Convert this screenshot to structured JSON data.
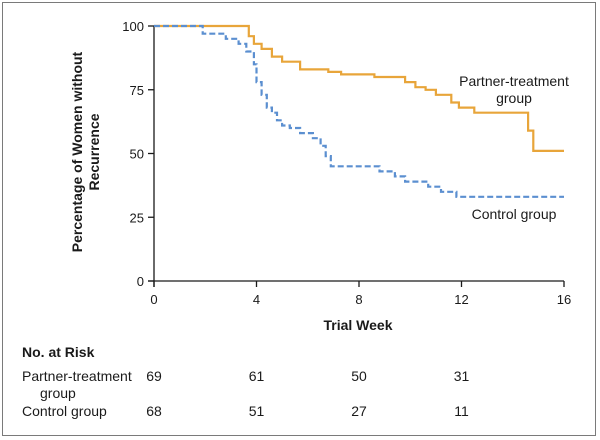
{
  "chart_data": {
    "type": "line",
    "step": true,
    "xlabel": "Trial Week",
    "ylabel": "Percentage of Women without Recurrence",
    "xlim": [
      0,
      16
    ],
    "ylim": [
      0,
      100
    ],
    "x_ticks": [
      0,
      4,
      8,
      12,
      16
    ],
    "y_ticks": [
      0,
      25,
      50,
      75,
      100
    ],
    "grid": false,
    "series": [
      {
        "name": "Partner-treatment group",
        "color": "#e8a53a",
        "line_style": "solid",
        "points": [
          [
            0,
            100
          ],
          [
            3.7,
            100
          ],
          [
            3.7,
            96
          ],
          [
            3.9,
            96
          ],
          [
            3.9,
            93
          ],
          [
            4.2,
            93
          ],
          [
            4.2,
            91
          ],
          [
            4.6,
            91
          ],
          [
            4.6,
            88
          ],
          [
            5.0,
            88
          ],
          [
            5.0,
            86
          ],
          [
            5.7,
            86
          ],
          [
            5.7,
            83
          ],
          [
            6.8,
            83
          ],
          [
            6.8,
            82
          ],
          [
            7.3,
            82
          ],
          [
            7.3,
            81
          ],
          [
            8.6,
            81
          ],
          [
            8.6,
            80
          ],
          [
            9.8,
            80
          ],
          [
            9.8,
            78
          ],
          [
            10.2,
            78
          ],
          [
            10.2,
            76
          ],
          [
            10.6,
            76
          ],
          [
            10.6,
            75
          ],
          [
            11.0,
            75
          ],
          [
            11.0,
            73
          ],
          [
            11.6,
            73
          ],
          [
            11.6,
            70
          ],
          [
            11.9,
            70
          ],
          [
            11.9,
            68
          ],
          [
            12.5,
            68
          ],
          [
            12.5,
            66
          ],
          [
            14.6,
            66
          ],
          [
            14.6,
            59
          ],
          [
            14.8,
            59
          ],
          [
            14.8,
            51
          ],
          [
            16,
            51
          ]
        ]
      },
      {
        "name": "Control group",
        "color": "#5b8fd0",
        "line_style": "dashed",
        "points": [
          [
            0,
            100
          ],
          [
            1.9,
            100
          ],
          [
            1.9,
            97
          ],
          [
            2.8,
            97
          ],
          [
            2.8,
            95
          ],
          [
            3.3,
            95
          ],
          [
            3.3,
            93
          ],
          [
            3.6,
            93
          ],
          [
            3.6,
            90
          ],
          [
            3.9,
            90
          ],
          [
            3.9,
            85
          ],
          [
            4.0,
            85
          ],
          [
            4.0,
            78
          ],
          [
            4.2,
            78
          ],
          [
            4.2,
            73
          ],
          [
            4.4,
            73
          ],
          [
            4.4,
            68
          ],
          [
            4.6,
            68
          ],
          [
            4.6,
            66
          ],
          [
            4.8,
            66
          ],
          [
            4.8,
            63
          ],
          [
            5.0,
            63
          ],
          [
            5.0,
            61
          ],
          [
            5.3,
            61
          ],
          [
            5.3,
            60
          ],
          [
            5.7,
            60
          ],
          [
            5.7,
            58
          ],
          [
            6.2,
            58
          ],
          [
            6.2,
            56
          ],
          [
            6.5,
            56
          ],
          [
            6.5,
            53
          ],
          [
            6.7,
            53
          ],
          [
            6.7,
            49
          ],
          [
            6.9,
            49
          ],
          [
            6.9,
            45
          ],
          [
            8.8,
            45
          ],
          [
            8.8,
            43
          ],
          [
            9.4,
            43
          ],
          [
            9.4,
            41
          ],
          [
            9.8,
            41
          ],
          [
            9.8,
            39
          ],
          [
            10.7,
            39
          ],
          [
            10.7,
            37
          ],
          [
            11.2,
            37
          ],
          [
            11.2,
            35
          ],
          [
            11.8,
            35
          ],
          [
            11.8,
            33
          ],
          [
            16,
            33
          ]
        ]
      }
    ],
    "annotations": [
      {
        "text_lines": [
          "Partner-treatment",
          "group"
        ],
        "series": 0
      },
      {
        "text_lines": [
          "Control group"
        ],
        "series": 1
      }
    ]
  },
  "risk_table": {
    "title": "No. at Risk",
    "weeks": [
      0,
      4,
      8,
      12
    ],
    "rows": [
      {
        "label_line1": "Partner-treatment",
        "label_line2": "group",
        "values": [
          "69",
          "61",
          "50",
          "31"
        ]
      },
      {
        "label_line1": "Control group",
        "label_line2": "",
        "values": [
          "68",
          "51",
          "27",
          "11"
        ]
      }
    ]
  }
}
